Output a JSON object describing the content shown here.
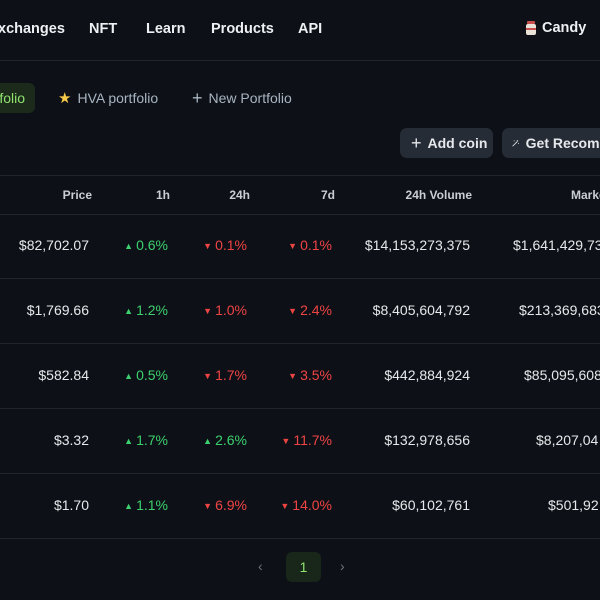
{
  "nav": {
    "items": [
      "xchanges",
      "NFT",
      "Learn",
      "Products",
      "API"
    ],
    "user": "Candy"
  },
  "portfolio_tabs": {
    "active": "folio",
    "hva": "HVA portfolio",
    "new": "New Portfolio"
  },
  "actions": {
    "add_coin": "Add coin",
    "recommend": "Get Recomm"
  },
  "table": {
    "headers": {
      "price": "Price",
      "h1": "1h",
      "h24": "24h",
      "d7": "7d",
      "volume": "24h Volume",
      "mcap": "Marke"
    },
    "rows": [
      {
        "price": "$82,702.07",
        "h1": "0.6%",
        "h1_dir": "up",
        "h24": "0.1%",
        "h24_dir": "down",
        "d7": "0.1%",
        "d7_dir": "down",
        "volume": "$14,153,273,375",
        "mcap": "$1,641,429,73"
      },
      {
        "price": "$1,769.66",
        "h1": "1.2%",
        "h1_dir": "up",
        "h24": "1.0%",
        "h24_dir": "down",
        "d7": "2.4%",
        "d7_dir": "down",
        "volume": "$8,405,604,792",
        "mcap": "$213,369,683"
      },
      {
        "price": "$582.84",
        "h1": "0.5%",
        "h1_dir": "up",
        "h24": "1.7%",
        "h24_dir": "down",
        "d7": "3.5%",
        "d7_dir": "down",
        "volume": "$442,884,924",
        "mcap": "$85,095,608"
      },
      {
        "price": "$3.32",
        "h1": "1.7%",
        "h1_dir": "up",
        "h24": "2.6%",
        "h24_dir": "up",
        "d7": "11.7%",
        "d7_dir": "down",
        "volume": "$132,978,656",
        "mcap": "$8,207,04"
      },
      {
        "price": "$1.70",
        "h1": "1.1%",
        "h1_dir": "up",
        "h24": "6.9%",
        "h24_dir": "down",
        "d7": "14.0%",
        "d7_dir": "down",
        "volume": "$60,102,761",
        "mcap": "$501,92"
      }
    ]
  },
  "pagination": {
    "current": "1",
    "prev_icon": "chevron-left-icon",
    "next_icon": "chevron-right-icon"
  },
  "colors": {
    "background": "#0d1117",
    "accent_green": "#8fe36d",
    "up": "#3dd06e",
    "down": "#ef4444"
  }
}
